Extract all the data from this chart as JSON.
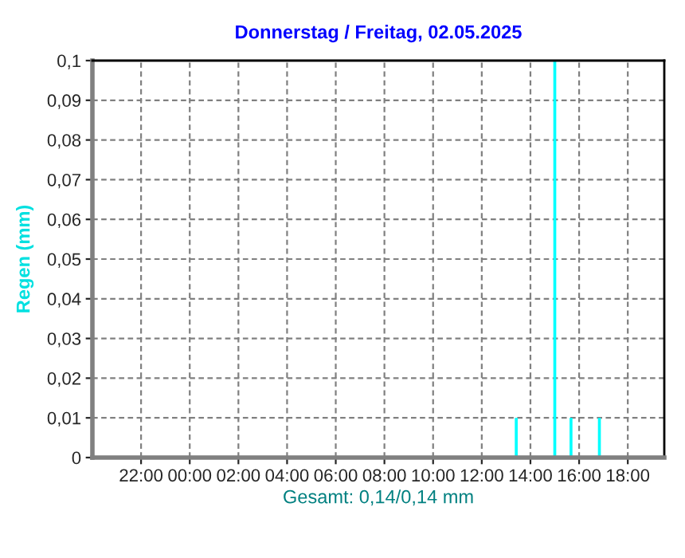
{
  "chart_data": {
    "type": "bar",
    "title": "Donnerstag / Freitag, 02.05.2025",
    "ylabel": "Regen (mm)",
    "xlabel": "Gesamt: 0,14/0,14 mm",
    "x": [
      "2025-05-02T13:25",
      "2025-05-02T15:00",
      "2025-05-02T15:40",
      "2025-05-02T16:50"
    ],
    "series": [
      {
        "color": "#00ffff",
        "values": [
          0.01,
          0.1,
          0.01,
          0.01
        ]
      }
    ],
    "xlim": [
      "2025-05-01T20:00",
      "2025-05-02T19:30"
    ],
    "xticks": [
      {
        "value": "2025-05-01T22:00",
        "label": "22:00"
      },
      {
        "value": "2025-05-02T00:00",
        "label": "00:00"
      },
      {
        "value": "2025-05-02T02:00",
        "label": "02:00"
      },
      {
        "value": "2025-05-02T04:00",
        "label": "04:00"
      },
      {
        "value": "2025-05-02T06:00",
        "label": "06:00"
      },
      {
        "value": "2025-05-02T08:00",
        "label": "08:00"
      },
      {
        "value": "2025-05-02T10:00",
        "label": "10:00"
      },
      {
        "value": "2025-05-02T12:00",
        "label": "12:00"
      },
      {
        "value": "2025-05-02T14:00",
        "label": "14:00"
      },
      {
        "value": "2025-05-02T16:00",
        "label": "16:00"
      },
      {
        "value": "2025-05-02T18:00",
        "label": "18:00"
      }
    ],
    "ylim": [
      0,
      0.1
    ],
    "yticks": [
      {
        "value": 0,
        "label": "0"
      },
      {
        "value": 0.01,
        "label": "0,01"
      },
      {
        "value": 0.02,
        "label": "0,02"
      },
      {
        "value": 0.03,
        "label": "0,03"
      },
      {
        "value": 0.04,
        "label": "0,04"
      },
      {
        "value": 0.05,
        "label": "0,05"
      },
      {
        "value": 0.06,
        "label": "0,06"
      },
      {
        "value": 0.07,
        "label": "0,07"
      },
      {
        "value": 0.08,
        "label": "0,08"
      },
      {
        "value": 0.09,
        "label": "0,09"
      },
      {
        "value": 0.1,
        "label": "0,1"
      }
    ],
    "grid": true
  }
}
